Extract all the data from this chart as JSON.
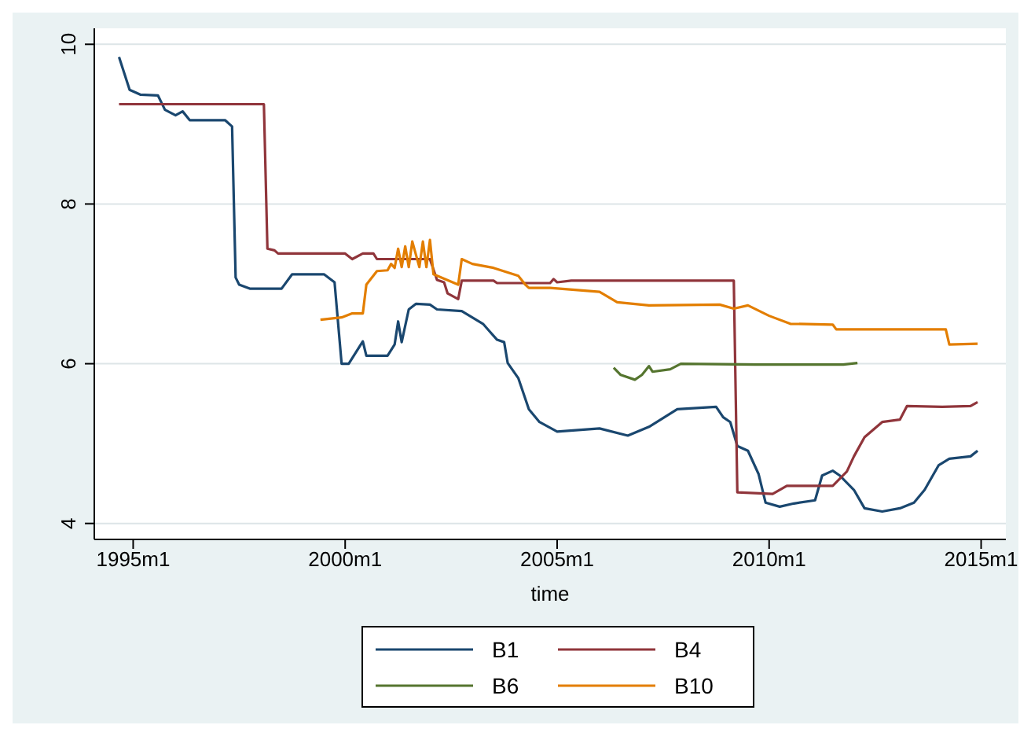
{
  "chart_data": {
    "type": "line",
    "xlabel": "time",
    "xlim": [
      "1994-02",
      "2015-08"
    ],
    "xticks": [
      {
        "value": "1995-01",
        "label": "1995m1"
      },
      {
        "value": "2000-01",
        "label": "2000m1"
      },
      {
        "value": "2005-01",
        "label": "2005m1"
      },
      {
        "value": "2010-01",
        "label": "2010m1"
      },
      {
        "value": "2015-01",
        "label": "2015m1"
      }
    ],
    "ylim": [
      3.8,
      10.2
    ],
    "yticks": [
      4,
      6,
      8,
      10
    ],
    "grid": "y",
    "legend": "bottom",
    "marker": "none",
    "line_style": "solid",
    "series": [
      {
        "name": "B1",
        "color": "#1a476f",
        "x": [
          "1994-09",
          "1994-12",
          "1995-03",
          "1995-08",
          "1995-10",
          "1996-01",
          "1996-03",
          "1996-05",
          "1997-03",
          "1997-05",
          "1997-06",
          "1997-07",
          "1997-10",
          "1998-07",
          "1998-10",
          "1999-07",
          "1999-10",
          "1999-12",
          "2000-02",
          "2000-06",
          "2000-07",
          "2001-01",
          "2001-03",
          "2001-04",
          "2001-05",
          "2001-07",
          "2001-09",
          "2002-01",
          "2002-03",
          "2002-10",
          "2003-04",
          "2003-06",
          "2003-08",
          "2003-10",
          "2003-11",
          "2004-02",
          "2004-05",
          "2004-08",
          "2005-01",
          "2005-07",
          "2006-01",
          "2006-09",
          "2007-03",
          "2007-11",
          "2008-10",
          "2008-12",
          "2009-02",
          "2009-04",
          "2009-07",
          "2009-10",
          "2009-12",
          "2010-04",
          "2010-08",
          "2011-02",
          "2011-04",
          "2011-07",
          "2011-09",
          "2012-01",
          "2012-04",
          "2012-09",
          "2013-02",
          "2013-06",
          "2013-09",
          "2014-01",
          "2014-04",
          "2014-10",
          "2014-12"
        ],
        "values": [
          9.84,
          9.43,
          9.37,
          9.36,
          9.18,
          9.11,
          9.16,
          9.05,
          9.05,
          8.97,
          7.08,
          6.99,
          6.94,
          6.94,
          7.12,
          7.12,
          7.02,
          6.0,
          6.0,
          6.28,
          6.1,
          6.1,
          6.24,
          6.53,
          6.27,
          6.68,
          6.75,
          6.74,
          6.68,
          6.66,
          6.5,
          6.4,
          6.3,
          6.27,
          6.01,
          5.82,
          5.43,
          5.27,
          5.15,
          5.17,
          5.19,
          5.1,
          5.21,
          5.43,
          5.46,
          5.33,
          5.27,
          4.97,
          4.91,
          4.62,
          4.26,
          4.21,
          4.25,
          4.29,
          4.6,
          4.66,
          4.6,
          4.42,
          4.19,
          4.15,
          4.19,
          4.26,
          4.42,
          4.73,
          4.81,
          4.84,
          4.91
        ]
      },
      {
        "name": "B4",
        "color": "#90353b",
        "x": [
          "1994-09",
          "1998-02",
          "1998-03",
          "1998-05",
          "1998-06",
          "2000-01",
          "2000-03",
          "2000-06",
          "2000-09",
          "2000-10",
          "2002-01",
          "2002-03",
          "2002-05",
          "2002-06",
          "2002-09",
          "2002-10",
          "2003-07",
          "2003-08",
          "2004-11",
          "2004-12",
          "2005-01",
          "2005-05",
          "2009-03",
          "2009-04",
          "2010-02",
          "2010-06",
          "2011-07",
          "2011-11",
          "2012-01",
          "2012-04",
          "2012-09",
          "2013-02",
          "2013-04",
          "2014-02",
          "2014-10",
          "2014-12"
        ],
        "values": [
          9.25,
          9.25,
          7.44,
          7.42,
          7.38,
          7.38,
          7.31,
          7.38,
          7.38,
          7.31,
          7.31,
          7.05,
          7.02,
          6.88,
          6.81,
          7.04,
          7.04,
          7.01,
          7.01,
          7.06,
          7.02,
          7.04,
          7.04,
          4.39,
          4.37,
          4.47,
          4.47,
          4.65,
          4.84,
          5.08,
          5.27,
          5.3,
          5.47,
          5.46,
          5.47,
          5.52
        ]
      },
      {
        "name": "B6",
        "color": "#55752f",
        "x": [
          "2006-05",
          "2006-07",
          "2006-11",
          "2007-01",
          "2007-03",
          "2007-04",
          "2007-09",
          "2007-12",
          "2009-09",
          "2011-10",
          "2012-02"
        ],
        "values": [
          5.95,
          5.86,
          5.8,
          5.86,
          5.97,
          5.9,
          5.93,
          6.0,
          5.99,
          5.99,
          6.01
        ]
      },
      {
        "name": "B10",
        "color": "#e37e00",
        "x": [
          "1999-06",
          "1999-12",
          "2000-03",
          "2000-06",
          "2000-07",
          "2000-10",
          "2001-01",
          "2001-02",
          "2001-03",
          "2001-04",
          "2001-05",
          "2001-06",
          "2001-07",
          "2001-08",
          "2001-10",
          "2001-11",
          "2001-12",
          "2002-01",
          "2002-02",
          "2002-09",
          "2002-10",
          "2003-01",
          "2003-07",
          "2004-02",
          "2004-04",
          "2004-05",
          "2004-11",
          "2006-01",
          "2006-06",
          "2007-03",
          "2008-11",
          "2009-03",
          "2009-07",
          "2010-01",
          "2010-07",
          "2011-07",
          "2011-08",
          "2014-03",
          "2014-04",
          "2014-12"
        ],
        "values": [
          6.55,
          6.58,
          6.63,
          6.63,
          6.99,
          7.16,
          7.17,
          7.25,
          7.2,
          7.44,
          7.21,
          7.47,
          7.21,
          7.53,
          7.21,
          7.53,
          7.21,
          7.55,
          7.12,
          6.99,
          7.31,
          7.25,
          7.2,
          7.1,
          6.99,
          6.95,
          6.95,
          6.9,
          6.77,
          6.73,
          6.74,
          6.69,
          6.73,
          6.6,
          6.5,
          6.49,
          6.43,
          6.43,
          6.24,
          6.25
        ]
      }
    ]
  }
}
